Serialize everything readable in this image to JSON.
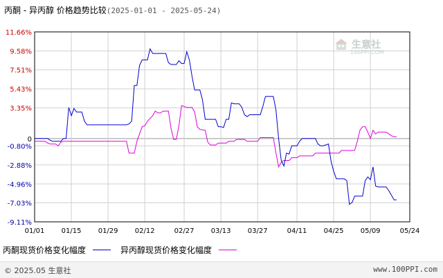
{
  "header": {
    "title": "丙酮 - 异丙醇 价格趋势比较",
    "range": "(2025-01-01 - 2025-05-24)"
  },
  "watermark": {
    "brand": "生意社",
    "site": "100PPI.COM"
  },
  "legend": {
    "series1_label": "丙酮现货价格变化幅度",
    "series2_label": "异丙醇现货价格变化幅度"
  },
  "footer": {
    "copyright": "© 2025.05 生意社",
    "url": "www.100PPI.com"
  },
  "chart_data": {
    "type": "line",
    "ylim": [
      -9.11,
      11.66
    ],
    "yticks": [
      11.66,
      9.58,
      7.51,
      5.43,
      3.35,
      0,
      -0.8,
      -2.88,
      -4.96,
      -7.03,
      -9.11
    ],
    "ytick_labels": [
      "11.66%",
      "9.58%",
      "7.51%",
      "5.43%",
      "3.35%",
      "0",
      "-0.80%",
      "-2.88%",
      "-4.96%",
      "-7.03%",
      "-9.11%"
    ],
    "xticks": [
      0,
      14,
      28,
      42,
      57,
      71,
      85,
      100,
      114,
      128,
      143
    ],
    "xtick_labels": [
      "01/01",
      "01/15",
      "01/29",
      "02/12",
      "02/27",
      "03/13",
      "03/27",
      "04/11",
      "04/25",
      "05/09",
      "05/24"
    ],
    "colors": {
      "series1": "#0000cc",
      "series2": "#dd00dd",
      "grid": "#d0d0d0",
      "zero": "#999999",
      "axis": "#000000"
    },
    "series": [
      {
        "name": "丙酮现货价格变化幅度",
        "points": [
          [
            0,
            0
          ],
          [
            1,
            0
          ],
          [
            5,
            0
          ],
          [
            6,
            -0.2
          ],
          [
            7,
            -0.3
          ],
          [
            8,
            -0.3
          ],
          [
            10,
            -0.3
          ],
          [
            11,
            0
          ],
          [
            12,
            0
          ],
          [
            13,
            3.4
          ],
          [
            14,
            2.5
          ],
          [
            15,
            3.3
          ],
          [
            16,
            2.9
          ],
          [
            18,
            2.9
          ],
          [
            19,
            1.9
          ],
          [
            20,
            1.5
          ],
          [
            35,
            1.5
          ],
          [
            36,
            1.6
          ],
          [
            37,
            1.9
          ],
          [
            38,
            5.8
          ],
          [
            39,
            5.8
          ],
          [
            40,
            8
          ],
          [
            41,
            8.6
          ],
          [
            43,
            8.6
          ],
          [
            44,
            9.8
          ],
          [
            45,
            9.3
          ],
          [
            50,
            9.3
          ],
          [
            51,
            8.3
          ],
          [
            52,
            8.1
          ],
          [
            54,
            8.1
          ],
          [
            55,
            8.5
          ],
          [
            56,
            8.2
          ],
          [
            57,
            8.2
          ],
          [
            58,
            9.5
          ],
          [
            59,
            8.6
          ],
          [
            60,
            6.8
          ],
          [
            61,
            5.3
          ],
          [
            63,
            5.3
          ],
          [
            64,
            4.2
          ],
          [
            65,
            2.1
          ],
          [
            66,
            2.1
          ],
          [
            69,
            2.1
          ],
          [
            70,
            1.3
          ],
          [
            71,
            1.3
          ],
          [
            72,
            1.2
          ],
          [
            73,
            2.1
          ],
          [
            74,
            2.1
          ],
          [
            75,
            3.9
          ],
          [
            76,
            3.8
          ],
          [
            78,
            3.8
          ],
          [
            79,
            3.4
          ],
          [
            80,
            2.6
          ],
          [
            81,
            2.4
          ],
          [
            82,
            2.6
          ],
          [
            86,
            2.6
          ],
          [
            87,
            3.5
          ],
          [
            88,
            4.6
          ],
          [
            91,
            4.6
          ],
          [
            92,
            3.1
          ],
          [
            93,
            0
          ],
          [
            94,
            -2.4
          ],
          [
            95,
            -3
          ],
          [
            96,
            -1.6
          ],
          [
            97,
            -1.7
          ],
          [
            98,
            -0.8
          ],
          [
            100,
            -0.8
          ],
          [
            101,
            -0.3
          ],
          [
            102,
            0
          ],
          [
            107,
            0
          ],
          [
            108,
            -0.6
          ],
          [
            109,
            -0.8
          ],
          [
            110,
            -0.8
          ],
          [
            112,
            -0.6
          ],
          [
            113,
            -2.5
          ],
          [
            114,
            -3.6
          ],
          [
            115,
            -4.4
          ],
          [
            118,
            -4.4
          ],
          [
            119,
            -4.6
          ],
          [
            120,
            -7.2
          ],
          [
            121,
            -7
          ],
          [
            122,
            -6.3
          ],
          [
            125,
            -6.3
          ],
          [
            126,
            -4.6
          ],
          [
            127,
            -4.2
          ],
          [
            128,
            -4.5
          ],
          [
            129,
            -3.1
          ],
          [
            130,
            -5.2
          ],
          [
            131,
            -5.3
          ],
          [
            134,
            -5.3
          ],
          [
            135,
            -5.7
          ],
          [
            136,
            -6.2
          ],
          [
            137,
            -6.7
          ],
          [
            138,
            -6.7
          ]
        ]
      },
      {
        "name": "异丙醇现货价格变化幅度",
        "points": [
          [
            0,
            -0.3
          ],
          [
            4,
            -0.3
          ],
          [
            5,
            -0.5
          ],
          [
            6,
            -0.6
          ],
          [
            8,
            -0.6
          ],
          [
            9,
            -0.8
          ],
          [
            10,
            -0.4
          ],
          [
            11,
            -0.3
          ],
          [
            25,
            -0.3
          ],
          [
            35,
            -0.3
          ],
          [
            36,
            -1.6
          ],
          [
            38,
            -1.6
          ],
          [
            39,
            -0.3
          ],
          [
            40,
            0.5
          ],
          [
            41,
            1.3
          ],
          [
            42,
            1.4
          ],
          [
            43,
            1.9
          ],
          [
            44,
            2.2
          ],
          [
            45,
            2.5
          ],
          [
            46,
            3
          ],
          [
            47,
            2.8
          ],
          [
            48,
            2.8
          ],
          [
            49,
            3
          ],
          [
            51,
            3
          ],
          [
            52,
            1.1
          ],
          [
            53,
            -0.1
          ],
          [
            54,
            -0.1
          ],
          [
            55,
            1.4
          ],
          [
            56,
            3.6
          ],
          [
            58,
            3.4
          ],
          [
            60,
            3.4
          ],
          [
            61,
            2.9
          ],
          [
            62,
            1.3
          ],
          [
            63,
            1
          ],
          [
            65,
            0.9
          ],
          [
            66,
            -0.4
          ],
          [
            67,
            -0.7
          ],
          [
            69,
            -0.7
          ],
          [
            70,
            -0.5
          ],
          [
            73,
            -0.5
          ],
          [
            74,
            -0.3
          ],
          [
            76,
            -0.3
          ],
          [
            77,
            -0.1
          ],
          [
            80,
            -0.1
          ],
          [
            81,
            -0.3
          ],
          [
            85,
            -0.3
          ],
          [
            86,
            0.1
          ],
          [
            91,
            0.1
          ],
          [
            92,
            -1.6
          ],
          [
            93,
            -3.1
          ],
          [
            94,
            -2.6
          ],
          [
            95,
            -2.4
          ],
          [
            97,
            -2.4
          ],
          [
            98,
            -2.1
          ],
          [
            100,
            -2.1
          ],
          [
            101,
            -1.9
          ],
          [
            106,
            -1.9
          ],
          [
            107,
            -1.6
          ],
          [
            116,
            -1.6
          ],
          [
            117,
            -1.3
          ],
          [
            122,
            -1.3
          ],
          [
            123,
            -0.3
          ],
          [
            124,
            0.9
          ],
          [
            125,
            1.3
          ],
          [
            126,
            1.3
          ],
          [
            127,
            0.7
          ],
          [
            128,
            0
          ],
          [
            129,
            0.9
          ],
          [
            130,
            0.5
          ],
          [
            131,
            0.7
          ],
          [
            134,
            0.7
          ],
          [
            135,
            0.5
          ],
          [
            136,
            0.3
          ],
          [
            137,
            0.2
          ],
          [
            138,
            0.2
          ]
        ]
      }
    ]
  }
}
